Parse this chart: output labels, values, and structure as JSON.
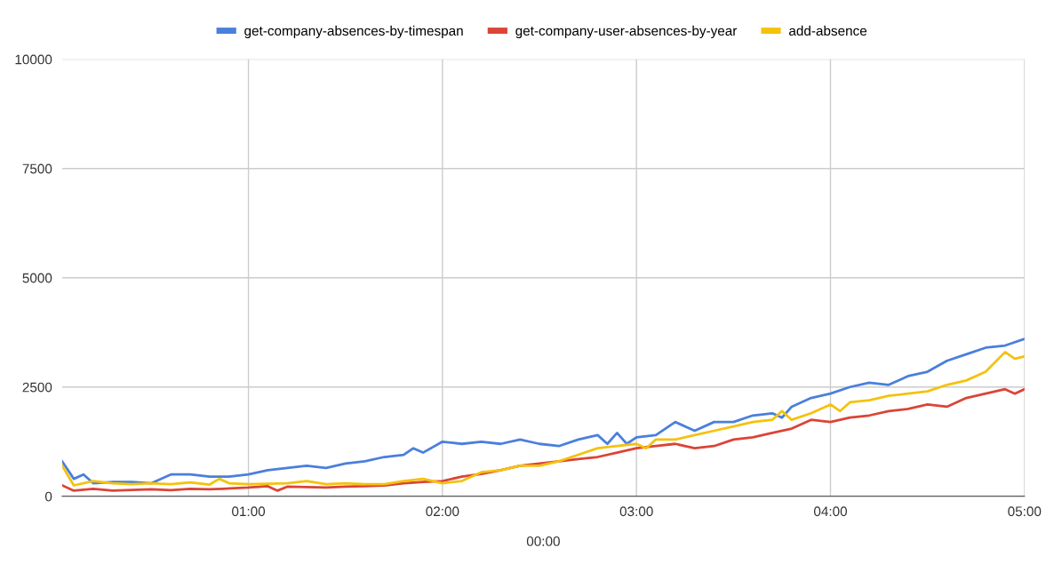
{
  "chart_data": {
    "type": "line",
    "xlabel": "00:00",
    "xlim": [
      0.04,
      5
    ],
    "xticks": [
      {
        "value": 1,
        "label": "01:00"
      },
      {
        "value": 2,
        "label": "02:00"
      },
      {
        "value": 3,
        "label": "03:00"
      },
      {
        "value": 4,
        "label": "04:00"
      },
      {
        "value": 5,
        "label": "05:00"
      }
    ],
    "ylim": [
      0,
      10000
    ],
    "yticks": [
      0,
      2500,
      5000,
      7500,
      10000
    ],
    "grid": true,
    "legend": "top",
    "marker": "none",
    "line_style": "solid",
    "series": [
      {
        "name": "get-company-absences-by-timespan",
        "color": "#4a7fdc",
        "x": [
          0.04,
          0.1,
          0.15,
          0.2,
          0.3,
          0.4,
          0.5,
          0.6,
          0.7,
          0.8,
          0.9,
          1.0,
          1.1,
          1.2,
          1.3,
          1.4,
          1.5,
          1.6,
          1.7,
          1.8,
          1.85,
          1.9,
          2.0,
          2.1,
          2.2,
          2.3,
          2.4,
          2.5,
          2.6,
          2.7,
          2.8,
          2.85,
          2.9,
          2.95,
          3.0,
          3.1,
          3.2,
          3.3,
          3.4,
          3.5,
          3.6,
          3.7,
          3.75,
          3.8,
          3.9,
          4.0,
          4.1,
          4.2,
          4.3,
          4.4,
          4.5,
          4.6,
          4.7,
          4.8,
          4.9,
          5.0
        ],
        "values": [
          800,
          400,
          500,
          300,
          330,
          330,
          300,
          500,
          500,
          450,
          450,
          500,
          600,
          650,
          700,
          650,
          750,
          800,
          900,
          950,
          1100,
          1000,
          1250,
          1200,
          1250,
          1200,
          1300,
          1200,
          1150,
          1300,
          1400,
          1200,
          1450,
          1200,
          1350,
          1400,
          1700,
          1500,
          1700,
          1700,
          1850,
          1900,
          1800,
          2050,
          2250,
          2350,
          2500,
          2600,
          2550,
          2750,
          2850,
          3100,
          3250,
          3400,
          3450,
          3600
        ]
      },
      {
        "name": "get-company-user-absences-by-year",
        "color": "#db4437",
        "x": [
          0.04,
          0.1,
          0.2,
          0.3,
          0.5,
          0.6,
          0.7,
          0.8,
          1.0,
          1.1,
          1.15,
          1.2,
          1.4,
          1.5,
          1.6,
          1.7,
          1.8,
          1.9,
          2.0,
          2.1,
          2.2,
          2.3,
          2.4,
          2.5,
          2.6,
          2.7,
          2.8,
          2.9,
          3.0,
          3.1,
          3.2,
          3.3,
          3.4,
          3.5,
          3.6,
          3.7,
          3.8,
          3.9,
          4.0,
          4.1,
          4.2,
          4.3,
          4.4,
          4.5,
          4.6,
          4.7,
          4.8,
          4.9,
          4.95,
          5.0
        ],
        "values": [
          250,
          130,
          170,
          130,
          160,
          140,
          170,
          160,
          200,
          230,
          130,
          220,
          200,
          220,
          230,
          250,
          300,
          330,
          350,
          450,
          510,
          600,
          700,
          750,
          800,
          850,
          900,
          1000,
          1100,
          1150,
          1200,
          1100,
          1150,
          1300,
          1350,
          1450,
          1550,
          1750,
          1700,
          1800,
          1850,
          1950,
          2000,
          2100,
          2050,
          2250,
          2350,
          2450,
          2350,
          2450
        ]
      },
      {
        "name": "add-absence",
        "color": "#f4c20d",
        "x": [
          0.04,
          0.1,
          0.2,
          0.3,
          0.4,
          0.5,
          0.6,
          0.7,
          0.8,
          0.85,
          0.9,
          1.0,
          1.2,
          1.3,
          1.4,
          1.5,
          1.6,
          1.7,
          1.8,
          1.9,
          2.0,
          2.1,
          2.2,
          2.3,
          2.4,
          2.5,
          2.6,
          2.7,
          2.8,
          2.9,
          3.0,
          3.05,
          3.1,
          3.2,
          3.3,
          3.4,
          3.5,
          3.6,
          3.7,
          3.75,
          3.8,
          3.9,
          4.0,
          4.05,
          4.1,
          4.2,
          4.3,
          4.4,
          4.5,
          4.6,
          4.7,
          4.8,
          4.9,
          4.95,
          5.0
        ],
        "values": [
          700,
          250,
          350,
          300,
          280,
          300,
          280,
          320,
          270,
          400,
          300,
          280,
          300,
          350,
          280,
          300,
          280,
          280,
          350,
          400,
          300,
          350,
          550,
          600,
          700,
          700,
          800,
          950,
          1100,
          1150,
          1200,
          1100,
          1300,
          1300,
          1400,
          1500,
          1600,
          1700,
          1750,
          1950,
          1750,
          1900,
          2100,
          1950,
          2150,
          2200,
          2300,
          2350,
          2400,
          2550,
          2650,
          2850,
          3300,
          3150,
          3200
        ]
      }
    ]
  }
}
